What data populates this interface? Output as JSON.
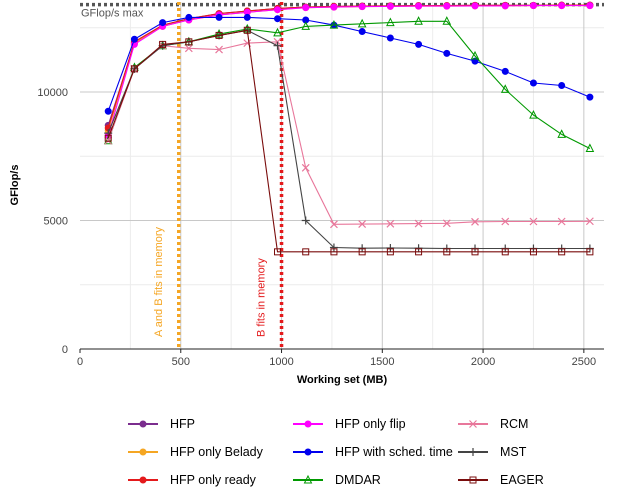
{
  "chart_data": {
    "type": "line",
    "xlabel": "Working set (MB)",
    "ylabel": "GFlop/s",
    "xlim": [
      0,
      2600
    ],
    "ylim": [
      0,
      13500
    ],
    "xticks": [
      0,
      500,
      1000,
      1500,
      2000,
      2500
    ],
    "yticks": [
      0,
      5000,
      10000
    ],
    "grid": true,
    "legend_position": "bottom",
    "reference_lines": [
      {
        "kind": "horizontal",
        "y": 13400,
        "label": "GFlop/s max",
        "color": "#555555",
        "style": "dotted"
      },
      {
        "kind": "vertical",
        "x": 490,
        "label": "A and B fits in memory",
        "color": "#f5a623",
        "style": "dotted"
      },
      {
        "kind": "vertical",
        "x": 1000,
        "label": "B fits in memory",
        "color": "#e41a1c",
        "style": "dotted"
      }
    ],
    "series": [
      {
        "name": "HFP",
        "color": "#7b2d8e",
        "marker": "circle",
        "x": [
          140,
          270,
          410,
          540,
          690,
          830,
          980,
          1120,
          1260,
          1400,
          1540,
          1680,
          1820,
          1960,
          2110,
          2250,
          2390,
          2530
        ],
        "y": [
          8700,
          11900,
          12600,
          12850,
          13050,
          13150,
          13250,
          13300,
          13330,
          13340,
          13350,
          13360,
          13360,
          13370,
          13370,
          13370,
          13380,
          13380
        ]
      },
      {
        "name": "HFP only Belady",
        "color": "#f5a623",
        "marker": "circle",
        "x": [
          140,
          270,
          410,
          540,
          690,
          830,
          980,
          1120,
          1260,
          1400,
          1540,
          1680,
          1820,
          1960,
          2110,
          2250,
          2390,
          2530
        ],
        "y": [
          8500,
          11900,
          12550,
          12800,
          13000,
          13100,
          13200,
          13280,
          13300,
          13320,
          13330,
          13340,
          13340,
          13350,
          13350,
          13360,
          13360,
          13360
        ]
      },
      {
        "name": "HFP only ready",
        "color": "#e41a1c",
        "marker": "circle",
        "x": [
          140,
          270,
          410,
          540,
          690,
          830,
          980,
          1120,
          1260,
          1400,
          1540,
          1680,
          1820,
          1960,
          2110,
          2250,
          2390,
          2530
        ],
        "y": [
          8600,
          11950,
          12600,
          12850,
          13050,
          13150,
          13250,
          13300,
          13330,
          13340,
          13350,
          13360,
          13360,
          13370,
          13370,
          13370,
          13380,
          13380
        ]
      },
      {
        "name": "HFP only flip",
        "color": "#ff00ff",
        "marker": "circle",
        "x": [
          140,
          270,
          410,
          540,
          690,
          830,
          980,
          1120,
          1260,
          1400,
          1540,
          1680,
          1820,
          1960,
          2110,
          2250,
          2390,
          2530
        ],
        "y": [
          8300,
          11850,
          12550,
          12800,
          13000,
          13100,
          13200,
          13280,
          13300,
          13320,
          13330,
          13340,
          13340,
          13350,
          13350,
          13360,
          13360,
          13360
        ]
      },
      {
        "name": "HFP with sched. time",
        "color": "#0000ee",
        "marker": "circle",
        "x": [
          140,
          270,
          410,
          540,
          690,
          830,
          980,
          1120,
          1260,
          1400,
          1540,
          1680,
          1820,
          1960,
          2110,
          2250,
          2390,
          2530
        ],
        "y": [
          9250,
          12050,
          12700,
          12900,
          12900,
          12900,
          12850,
          12800,
          12600,
          12350,
          12100,
          11850,
          11500,
          11200,
          10800,
          10350,
          10250,
          9800
        ]
      },
      {
        "name": "DMDAR",
        "color": "#009900",
        "marker": "triangle",
        "x": [
          140,
          270,
          410,
          540,
          690,
          830,
          980,
          1120,
          1260,
          1400,
          1540,
          1680,
          1820,
          1960,
          2110,
          2250,
          2390,
          2530
        ],
        "y": [
          8100,
          10950,
          11800,
          11950,
          12250,
          12450,
          12300,
          12550,
          12600,
          12650,
          12700,
          12750,
          12750,
          11400,
          10100,
          9100,
          8350,
          7800
        ]
      },
      {
        "name": "RCM",
        "color": "#e8779b",
        "marker": "x",
        "x": [
          140,
          270,
          410,
          540,
          690,
          830,
          980,
          1120,
          1260,
          1400,
          1540,
          1680,
          1820,
          1960,
          2110,
          2250,
          2390,
          2530
        ],
        "y": [
          8100,
          10900,
          11800,
          11700,
          11650,
          11900,
          11950,
          7050,
          4850,
          4860,
          4870,
          4880,
          4890,
          4950,
          4960,
          4960,
          4960,
          4970
        ]
      },
      {
        "name": "MST",
        "color": "#444444",
        "marker": "plus",
        "x": [
          140,
          270,
          410,
          540,
          690,
          830,
          980,
          1120,
          1260,
          1400,
          1540,
          1680,
          1820,
          1960,
          2110,
          2250,
          2390,
          2530
        ],
        "y": [
          8400,
          10900,
          11800,
          11950,
          12200,
          12400,
          11800,
          5000,
          3950,
          3920,
          3930,
          3920,
          3910,
          3910,
          3910,
          3910,
          3910,
          3910
        ]
      },
      {
        "name": "EAGER",
        "color": "#7a0c0c",
        "marker": "square",
        "x": [
          140,
          270,
          410,
          540,
          690,
          830,
          980,
          1120,
          1260,
          1400,
          1540,
          1680,
          1820,
          1960,
          2110,
          2250,
          2390,
          2530
        ],
        "y": [
          8200,
          10900,
          11850,
          11950,
          12200,
          12400,
          3780,
          3780,
          3780,
          3780,
          3780,
          3780,
          3780,
          3780,
          3780,
          3780,
          3780,
          3780
        ]
      }
    ]
  }
}
